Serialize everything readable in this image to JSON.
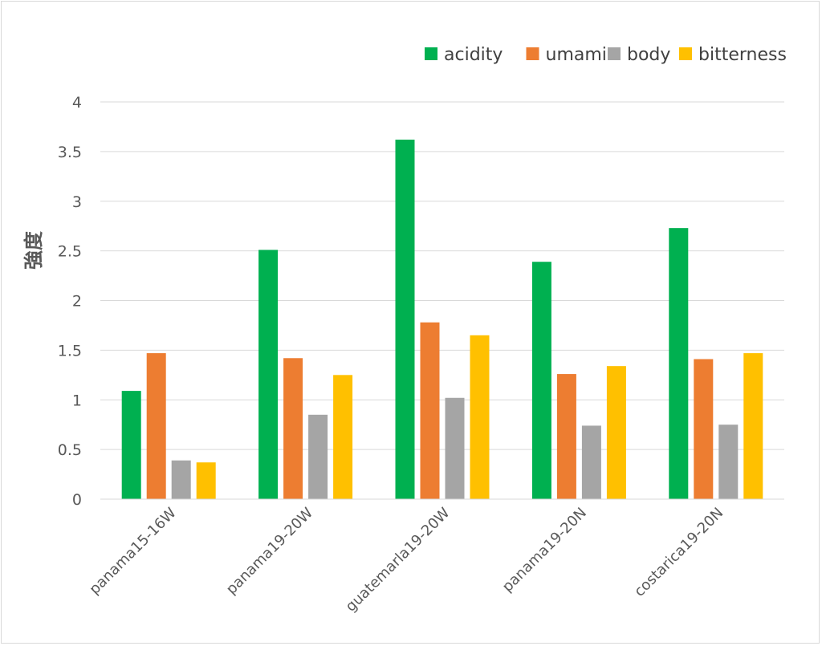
{
  "chart_data": {
    "type": "bar",
    "title": "",
    "xlabel": "",
    "ylabel": "強度",
    "ylim": [
      0,
      4
    ],
    "yticks": [
      "0",
      "0.5",
      "1",
      "1.5",
      "2",
      "2.5",
      "3",
      "3.5",
      "4"
    ],
    "grid": true,
    "legend_position": "top-right",
    "categories": [
      "panama15-16W",
      "panama19-20W",
      "guatemarla19-20W",
      "panama19-20N",
      "costarica19-20N"
    ],
    "series": [
      {
        "name": "acidity",
        "color": "#00b050",
        "values": [
          1.09,
          2.51,
          3.62,
          2.39,
          2.73
        ]
      },
      {
        "name": "umami",
        "color": "#ed7d31",
        "values": [
          1.47,
          1.42,
          1.78,
          1.26,
          1.41
        ]
      },
      {
        "name": "body",
        "color": "#a5a5a5",
        "values": [
          0.39,
          0.85,
          1.02,
          0.74,
          0.75
        ]
      },
      {
        "name": "bitterness",
        "color": "#ffc000",
        "values": [
          0.37,
          1.25,
          1.65,
          1.34,
          1.47
        ]
      }
    ]
  }
}
